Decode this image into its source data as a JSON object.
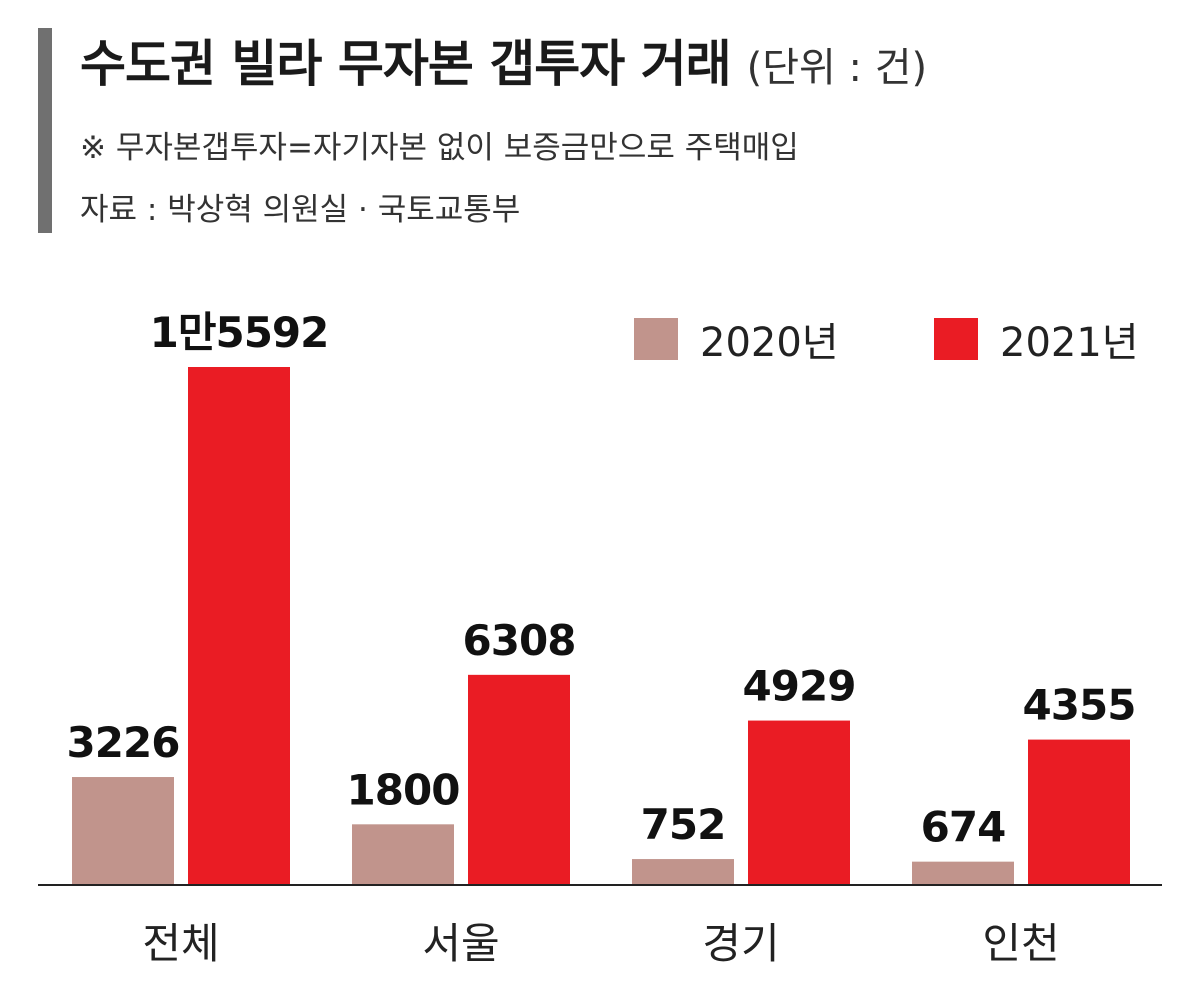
{
  "header": {
    "title": "수도권 빌라 무자본 갭투자 거래",
    "unit": "(단위 : 건)",
    "note": "※ 무자본갭투자=자기자본 없이 보증금만으로 주택매입",
    "source": "자료 : 박상혁 의원실 · 국토교통부"
  },
  "colors": {
    "accent_bar": "#707070",
    "series_2020": "#C1948C",
    "series_2021": "#EA1C24"
  },
  "chart_data": {
    "type": "bar",
    "title": "수도권 빌라 무자본 갭투자 거래",
    "categories": [
      "전체",
      "서울",
      "경기",
      "인천"
    ],
    "series": [
      {
        "name": "2020년",
        "values": [
          3226,
          1800,
          752,
          674
        ],
        "labels": [
          "3226",
          "1800",
          "752",
          "674"
        ]
      },
      {
        "name": "2021년",
        "values": [
          15592,
          6308,
          4929,
          4355
        ],
        "labels": [
          "1만5592",
          "6308",
          "4929",
          "4355"
        ]
      }
    ],
    "legend_position": "top-right",
    "grid": false,
    "y_axis_visible": false
  }
}
